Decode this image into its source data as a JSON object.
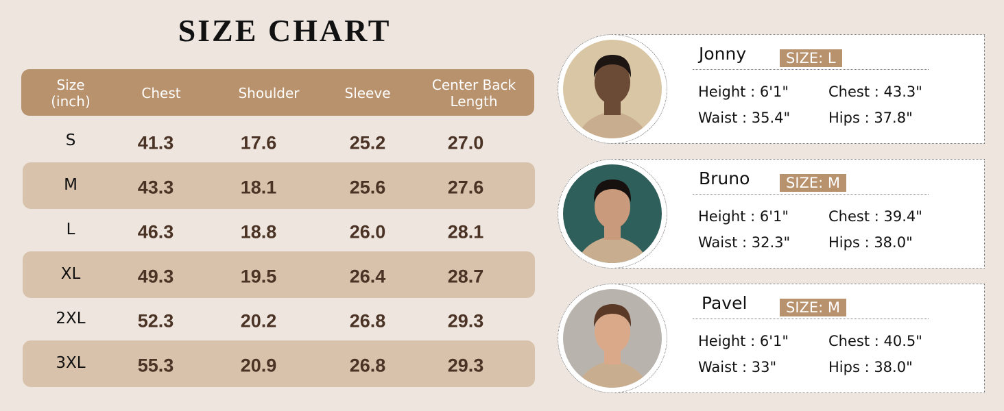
{
  "title": "SIZE CHART",
  "table": {
    "header": [
      [
        "Size",
        "(inch)"
      ],
      [
        "Chest"
      ],
      [
        "Shoulder"
      ],
      [
        "Sleeve"
      ],
      [
        "Center Back",
        "Length"
      ]
    ],
    "rows": [
      [
        "S",
        "41.3",
        "17.6",
        "25.2",
        "27.0"
      ],
      [
        "M",
        "43.3",
        "18.1",
        "25.6",
        "27.6"
      ],
      [
        "L",
        "46.3",
        "18.8",
        "26.0",
        "28.1"
      ],
      [
        "XL",
        "49.3",
        "19.5",
        "26.4",
        "28.7"
      ],
      [
        "2XL",
        "52.3",
        "20.2",
        "26.8",
        "29.3"
      ],
      [
        "3XL",
        "55.3",
        "20.9",
        "26.8",
        "29.3"
      ]
    ]
  },
  "models": [
    {
      "name": "Jonny",
      "size": "SIZE: L",
      "height": "Height : 6'1\"",
      "chest": "Chest : 43.3\"",
      "waist": "Waist : 35.4\"",
      "hips": "Hips : 37.8\""
    },
    {
      "name": "Bruno",
      "size": "SIZE: M",
      "height": "Height : 6'1\"",
      "chest": "Chest : 39.4\"",
      "waist": "Waist : 32.3\"",
      "hips": "Hips : 38.0\""
    },
    {
      "name": "Pavel",
      "size": "SIZE: M",
      "height": "Height : 6'1\"",
      "chest": "Chest : 40.5\"",
      "waist": "Waist : 33\"",
      "hips": "Hips : 38.0\""
    }
  ]
}
